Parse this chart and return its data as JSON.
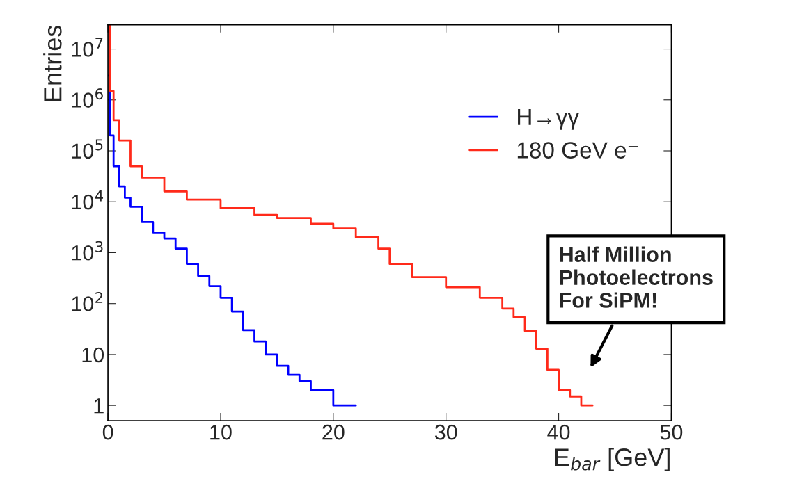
{
  "chart_data": {
    "type": "step",
    "xlabel": "E$_{bar}$ [GeV]",
    "ylabel": "Entries",
    "log": "y",
    "xlim": [
      0,
      50
    ],
    "ylim": [
      0.5,
      30000000
    ],
    "xticks": [
      0,
      10,
      20,
      30,
      40,
      50
    ],
    "yticks": [
      1,
      10,
      {
        "value": 100,
        "label": "10$^{2}$"
      },
      {
        "value": 1000,
        "label": "10$^{3}$"
      },
      {
        "value": 10000,
        "label": "10$^{4}$"
      },
      {
        "value": 100000,
        "label": "10$^{5}$"
      },
      {
        "value": 1000000,
        "label": "10$^{6}$"
      },
      {
        "value": 10000000,
        "label": "10$^{7}$"
      }
    ],
    "legend": "center right",
    "grid": false,
    "series": [
      {
        "name": "H→γγ",
        "color": "#0000ff",
        "x": [
          0,
          0.2,
          0.5,
          1,
          1.5,
          2,
          3,
          4,
          5,
          6,
          7,
          8,
          9,
          10,
          11,
          12,
          13,
          14,
          15,
          16,
          17,
          18,
          19,
          20,
          21,
          22
        ],
        "values": [
          3000000,
          200000,
          50000,
          20000,
          12000,
          8000,
          4000,
          2500,
          1900,
          1200,
          600,
          350,
          220,
          130,
          70,
          30,
          18,
          10,
          6,
          4,
          3,
          2,
          2,
          1,
          1,
          1
        ]
      },
      {
        "name": "180 GeV e⁻",
        "color": "#ff2a1a",
        "x": [
          0,
          0.2,
          0.5,
          1,
          2,
          3,
          5,
          7,
          10,
          13,
          15,
          18,
          20,
          22,
          24,
          25,
          27,
          30,
          33,
          35,
          36,
          37,
          38,
          39,
          40,
          41,
          42,
          43
        ],
        "values": [
          30000000,
          1500000,
          400000,
          160000,
          50000,
          30000,
          16000,
          11000,
          7500,
          5500,
          4800,
          3700,
          3000,
          2000,
          1200,
          600,
          330,
          210,
          130,
          80,
          54,
          29,
          13,
          5,
          2,
          1.5,
          1,
          1
        ]
      }
    ],
    "annotations": [
      "Half Million\nPhotoelectrons\nFor SiPM!"
    ]
  }
}
